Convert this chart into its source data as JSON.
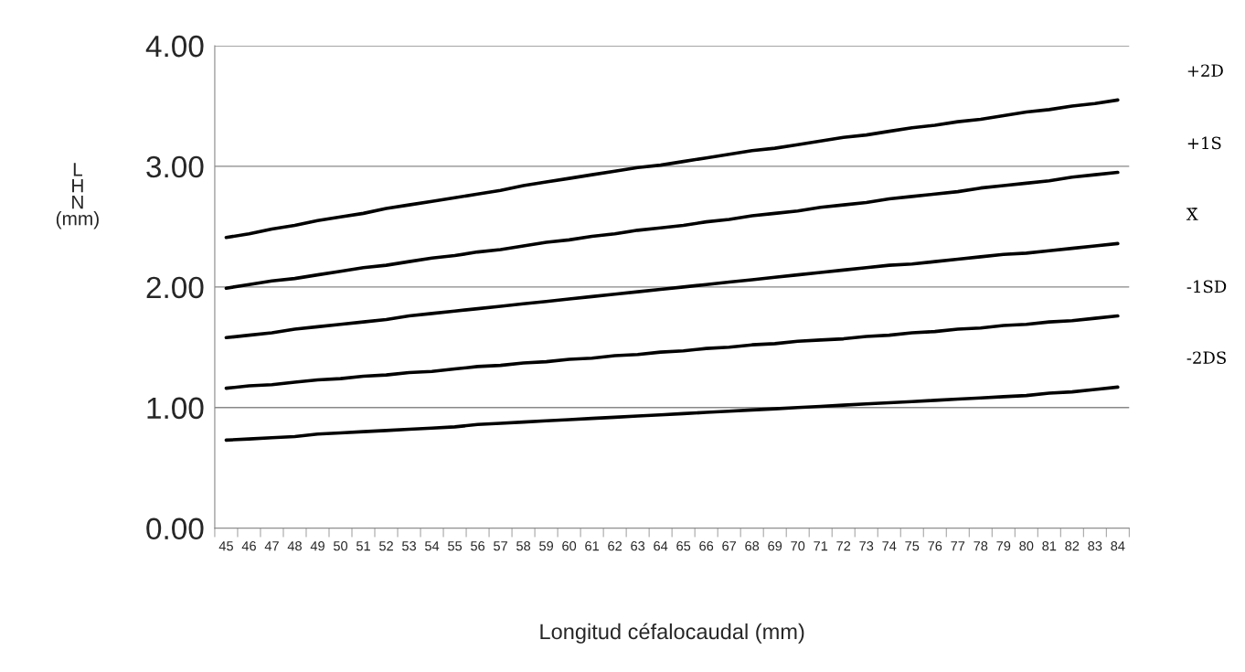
{
  "chart_data": {
    "type": "line",
    "ylabel": "L\nH\nN\n(mm)",
    "xlabel": "Longitud céfalocaudal (mm)",
    "categories": [
      "45",
      "46",
      "47",
      "48",
      "49",
      "50",
      "51",
      "52",
      "53",
      "54",
      "55",
      "56",
      "57",
      "58",
      "59",
      "60",
      "61",
      "62",
      "63",
      "64",
      "65",
      "66",
      "67",
      "68",
      "69",
      "70",
      "71",
      "72",
      "73",
      "74",
      "75",
      "76",
      "77",
      "78",
      "79",
      "80",
      "81",
      "82",
      "83",
      "84"
    ],
    "series": [
      {
        "name": "+2D",
        "color": "#000000",
        "values": [
          2.41,
          2.44,
          2.48,
          2.51,
          2.55,
          2.58,
          2.61,
          2.65,
          2.68,
          2.71,
          2.74,
          2.77,
          2.8,
          2.84,
          2.87,
          2.9,
          2.93,
          2.96,
          2.99,
          3.01,
          3.04,
          3.07,
          3.1,
          3.13,
          3.15,
          3.18,
          3.21,
          3.24,
          3.26,
          3.29,
          3.32,
          3.34,
          3.37,
          3.39,
          3.42,
          3.45,
          3.47,
          3.5,
          3.52,
          3.55
        ]
      },
      {
        "name": "+1S",
        "color": "#000000",
        "values": [
          1.99,
          2.02,
          2.05,
          2.07,
          2.1,
          2.13,
          2.16,
          2.18,
          2.21,
          2.24,
          2.26,
          2.29,
          2.31,
          2.34,
          2.37,
          2.39,
          2.42,
          2.44,
          2.47,
          2.49,
          2.51,
          2.54,
          2.56,
          2.59,
          2.61,
          2.63,
          2.66,
          2.68,
          2.7,
          2.73,
          2.75,
          2.77,
          2.79,
          2.82,
          2.84,
          2.86,
          2.88,
          2.91,
          2.93,
          2.95
        ]
      },
      {
        "name": "X̄",
        "color": "#000000",
        "values": [
          1.58,
          1.6,
          1.62,
          1.65,
          1.67,
          1.69,
          1.71,
          1.73,
          1.76,
          1.78,
          1.8,
          1.82,
          1.84,
          1.86,
          1.88,
          1.9,
          1.92,
          1.94,
          1.96,
          1.98,
          2.0,
          2.02,
          2.04,
          2.06,
          2.08,
          2.1,
          2.12,
          2.14,
          2.16,
          2.18,
          2.19,
          2.21,
          2.23,
          2.25,
          2.27,
          2.28,
          2.3,
          2.32,
          2.34,
          2.36
        ]
      },
      {
        "name": "-1SD",
        "color": "#000000",
        "values": [
          1.16,
          1.18,
          1.19,
          1.21,
          1.23,
          1.24,
          1.26,
          1.27,
          1.29,
          1.3,
          1.32,
          1.34,
          1.35,
          1.37,
          1.38,
          1.4,
          1.41,
          1.43,
          1.44,
          1.46,
          1.47,
          1.49,
          1.5,
          1.52,
          1.53,
          1.55,
          1.56,
          1.57,
          1.59,
          1.6,
          1.62,
          1.63,
          1.65,
          1.66,
          1.68,
          1.69,
          1.71,
          1.72,
          1.74,
          1.76
        ]
      },
      {
        "name": "-2DS",
        "color": "#000000",
        "values": [
          0.73,
          0.74,
          0.75,
          0.76,
          0.78,
          0.79,
          0.8,
          0.81,
          0.82,
          0.83,
          0.84,
          0.86,
          0.87,
          0.88,
          0.89,
          0.9,
          0.91,
          0.92,
          0.93,
          0.94,
          0.95,
          0.96,
          0.97,
          0.98,
          0.99,
          1.0,
          1.01,
          1.02,
          1.03,
          1.04,
          1.05,
          1.06,
          1.07,
          1.08,
          1.09,
          1.1,
          1.12,
          1.13,
          1.15,
          1.17
        ]
      }
    ],
    "ylim": [
      0,
      4
    ],
    "yticks": [
      {
        "value": 0,
        "label": "0.00"
      },
      {
        "value": 1,
        "label": "1.00"
      },
      {
        "value": 2,
        "label": "2.00"
      },
      {
        "value": 3,
        "label": "3.00"
      },
      {
        "value": 4,
        "label": "4.00"
      }
    ],
    "grid": "y",
    "legend": "right",
    "marker": "none",
    "line_style": "solid"
  }
}
